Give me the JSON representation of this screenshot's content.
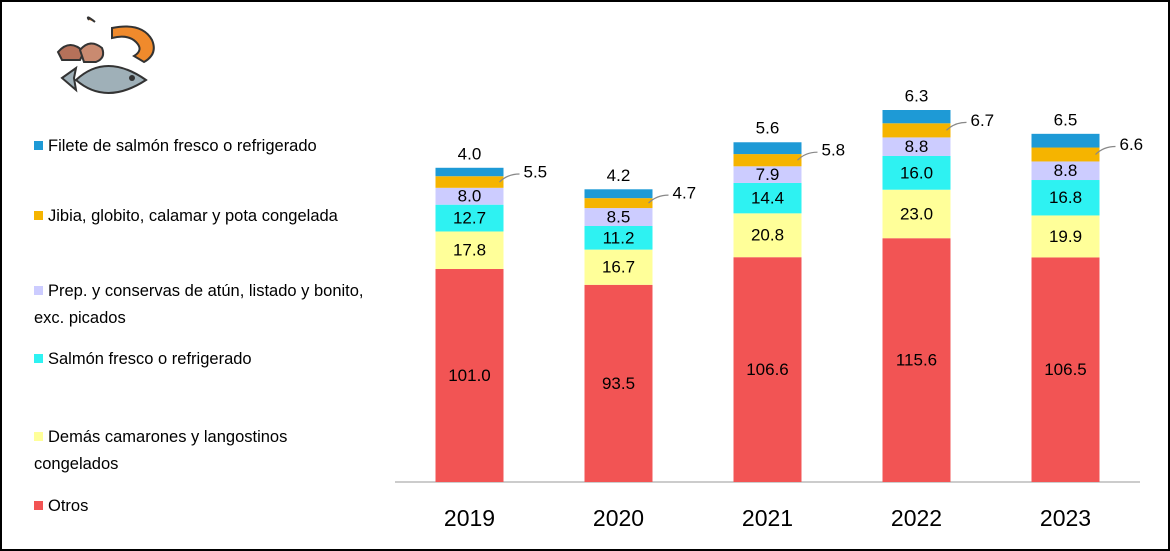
{
  "chart_data": {
    "type": "stacked_bar",
    "categories": [
      "2019",
      "2020",
      "2021",
      "2022",
      "2023"
    ],
    "series": [
      {
        "name": "Otros",
        "color": "#f25454",
        "values": [
          101.0,
          93.5,
          106.6,
          115.6,
          106.5
        ],
        "value_labels": [
          "101.0",
          "93.5",
          "106.6",
          "115.6",
          "106.5"
        ]
      },
      {
        "name": "Demás camarones y langostinos congelados",
        "color": "#ffff99",
        "values": [
          17.8,
          16.7,
          20.8,
          23.0,
          19.9
        ],
        "value_labels": [
          "17.8",
          "16.7",
          "20.8",
          "23.0",
          "19.9"
        ]
      },
      {
        "name": "Salmón fresco o refrigerado",
        "color": "#2ef2f2",
        "values": [
          12.7,
          11.2,
          14.4,
          16.0,
          16.8
        ],
        "value_labels": [
          "12.7",
          "11.2",
          "14.4",
          "16.0",
          "16.8"
        ]
      },
      {
        "name": "Prep. y conservas de atún, listado y bonito, exc. picados",
        "color": "#ccccff",
        "values": [
          8.0,
          8.5,
          7.9,
          8.8,
          8.8
        ],
        "value_labels": [
          "8.0",
          "8.5",
          "7.9",
          "8.8",
          "8.8"
        ]
      },
      {
        "name": "Jibia, globito, calamar y pota congelada",
        "color": "#f5b400",
        "values": [
          5.5,
          4.7,
          5.8,
          6.7,
          6.6
        ],
        "value_labels": [
          "5.5",
          "4.7",
          "5.8",
          "6.7",
          "6.6"
        ]
      },
      {
        "name": "Filete de salmón fresco o refrigerado",
        "color": "#1e9ad6",
        "values": [
          4.0,
          4.2,
          5.6,
          6.3,
          6.5
        ],
        "value_labels": [
          "4.0",
          "4.2",
          "5.6",
          "6.3",
          "6.5"
        ]
      }
    ]
  }
}
